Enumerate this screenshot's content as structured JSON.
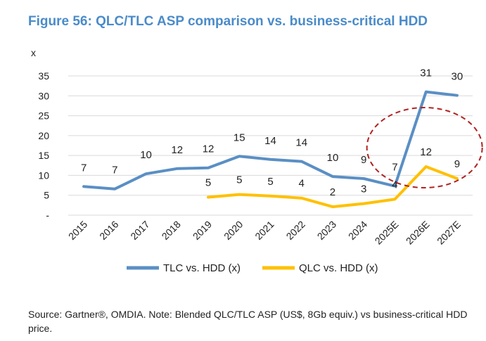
{
  "title": "Figure 56: QLC/TLC ASP comparison vs. business-critical HDD",
  "source": "Source: Gartner®, OMDIA. Note: Blended QLC/TLC ASP (US$, 8Gb equiv.) vs business-critical HDD price.",
  "chart_data": {
    "type": "line",
    "ylabel": "x",
    "ylim": [
      0,
      35
    ],
    "yticks": [
      "-",
      "5",
      "10",
      "15",
      "20",
      "25",
      "30",
      "35"
    ],
    "grid": true,
    "legend_position": "bottom",
    "categories": [
      "2015",
      "2016",
      "2017",
      "2018",
      "2019",
      "2020",
      "2021",
      "2022",
      "2023",
      "2024",
      "2025E",
      "2026E",
      "2027E"
    ],
    "series": [
      {
        "name": "TLC vs. HDD (x)",
        "color": "#5a8fc4",
        "values": [
          7.2,
          6.6,
          10.4,
          11.7,
          11.9,
          14.8,
          14.0,
          13.5,
          9.7,
          9.2,
          7.3,
          31.0,
          30.1
        ],
        "labels": [
          "7",
          "7",
          "10",
          "12",
          "12",
          "15",
          "14",
          "14",
          "10",
          "9",
          "7",
          "31",
          "30"
        ]
      },
      {
        "name": "QLC vs. HDD (x)",
        "color": "#ffc000",
        "values": [
          null,
          null,
          null,
          null,
          4.5,
          5.2,
          4.8,
          4.3,
          2.1,
          2.9,
          4.0,
          12.2,
          9.2
        ],
        "labels": [
          null,
          null,
          null,
          null,
          "5",
          "5",
          "5",
          "4",
          "2",
          "3",
          "4",
          "12",
          "9"
        ]
      }
    ],
    "annotation": {
      "shape": "dashed-ellipse",
      "color": "#b22222",
      "around_categories": [
        "2025E",
        "2026E",
        "2027E"
      ]
    }
  }
}
